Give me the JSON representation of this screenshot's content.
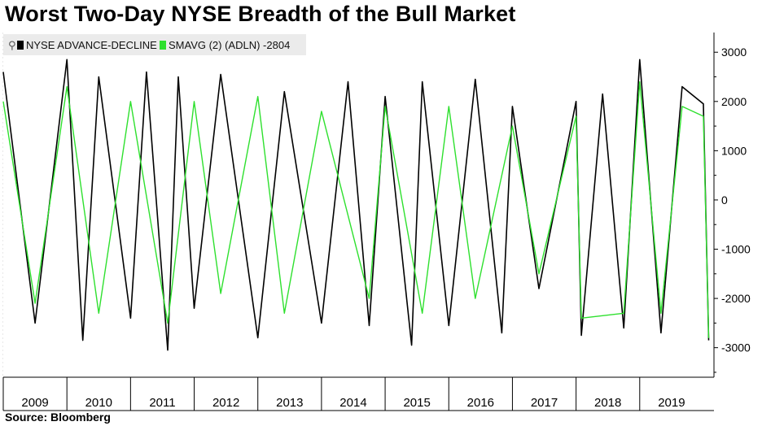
{
  "title": "Worst Two-Day NYSE Breadth of the Bull Market",
  "source": "Source: Bloomberg",
  "legend": {
    "icon": "pin-icon",
    "items": [
      {
        "label": "NYSE ADVANCE-DECLINE",
        "color": "#000000"
      },
      {
        "label": "SMAVG (2) (ADLN) -2804",
        "color": "#2ee02e"
      }
    ]
  },
  "chart_data": {
    "type": "line",
    "x_range": [
      "2009-01",
      "2020-03"
    ],
    "xtick_labels": [
      "2009",
      "2010",
      "2011",
      "2012",
      "2013",
      "2014",
      "2015",
      "2016",
      "2017",
      "2018",
      "2019"
    ],
    "ylim": [
      -3600,
      3400
    ],
    "ytick_labels": [
      "3000",
      "2000",
      "1000",
      "0",
      "-1000",
      "-2000",
      "-3000"
    ],
    "ytick_values": [
      3000,
      2000,
      1000,
      0,
      -1000,
      -2000,
      -3000
    ],
    "grid": true,
    "legend_position": "top-left",
    "series": [
      {
        "name": "NYSE ADVANCE-DECLINE",
        "color": "#000000",
        "x": [
          "2009-01",
          "2009-07",
          "2010-01",
          "2010-04",
          "2010-07",
          "2011-01",
          "2011-04",
          "2011-08",
          "2011-10",
          "2012-01",
          "2012-06",
          "2013-01",
          "2013-06",
          "2014-01",
          "2014-06",
          "2014-10",
          "2015-01",
          "2015-06",
          "2015-08",
          "2016-01",
          "2016-06",
          "2016-11",
          "2017-01",
          "2017-06",
          "2018-01",
          "2018-02",
          "2018-06",
          "2018-10",
          "2019-01",
          "2019-05",
          "2019-09",
          "2020-01",
          "2020-02"
        ],
        "values": [
          2600,
          -2500,
          2850,
          -2850,
          2500,
          -2400,
          2600,
          -3050,
          2500,
          -2200,
          2550,
          -2800,
          2200,
          -2500,
          2400,
          -2550,
          2100,
          -2950,
          2400,
          -2550,
          2450,
          -2700,
          1900,
          -1800,
          2000,
          -2750,
          2150,
          -2600,
          2850,
          -2700,
          2300,
          1950,
          -2850
        ]
      },
      {
        "name": "SMAVG (2) (ADLN) -2804",
        "color": "#2ee02e",
        "x": [
          "2009-01",
          "2009-07",
          "2010-01",
          "2010-07",
          "2011-01",
          "2011-08",
          "2012-01",
          "2012-06",
          "2013-01",
          "2013-06",
          "2014-01",
          "2014-10",
          "2015-01",
          "2015-08",
          "2016-01",
          "2016-06",
          "2017-01",
          "2017-06",
          "2018-01",
          "2018-02",
          "2018-10",
          "2019-01",
          "2019-05",
          "2019-09",
          "2020-01",
          "2020-02"
        ],
        "values": [
          2000,
          -2100,
          2300,
          -2300,
          2000,
          -2500,
          2000,
          -1900,
          2100,
          -2300,
          1800,
          -2000,
          1900,
          -2300,
          1900,
          -2000,
          1500,
          -1500,
          1700,
          -2400,
          -2300,
          2400,
          -2300,
          1900,
          1700,
          -2804
        ]
      }
    ]
  }
}
